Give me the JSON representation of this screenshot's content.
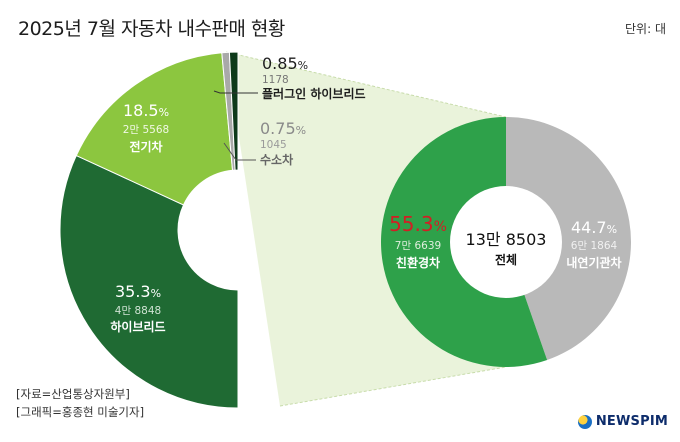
{
  "header": {
    "title": "2025년 7월 자동차 내수판매 현황",
    "unit": "단위: 대"
  },
  "footer": {
    "source": "[자료=산업통상자원부]",
    "graphic": "[그래픽=홍종현 미술기자]",
    "brand": "NEWSPIM"
  },
  "colors": {
    "hybrid": "#1f6a33",
    "electric": "#8cc63f",
    "hydrogen": "#a9a9a9",
    "plugin": "#0e3a1a",
    "eco_total": "#2ea14a",
    "ice": "#b9b9b9"
  },
  "chart_data": [
    {
      "type": "pie",
      "subtype": "donut",
      "center": {
        "value": "13만 8503",
        "label": "전체"
      },
      "slices": [
        {
          "name": "친환경차",
          "percent": 55.3,
          "pct_text": "55.3",
          "pct_unit": "%",
          "value": 76639,
          "value_text": "7만 6639",
          "color": "#2ea14a"
        },
        {
          "name": "내연기관차",
          "percent": 44.7,
          "pct_text": "44.7",
          "pct_unit": "%",
          "value": 61864,
          "value_text": "6만 1864",
          "color": "#b9b9b9"
        }
      ]
    },
    {
      "type": "pie",
      "subtype": "semi-donut breakdown of 친환경차",
      "slices": [
        {
          "name": "하이브리드",
          "percent": 35.3,
          "pct_text": "35.3",
          "pct_unit": "%",
          "value": 48848,
          "value_text": "4만 8848",
          "color": "#1f6a33"
        },
        {
          "name": "전기차",
          "percent": 18.5,
          "pct_text": "18.5",
          "pct_unit": "%",
          "value": 25568,
          "value_text": "2만 5568",
          "color": "#8cc63f"
        },
        {
          "name": "수소차",
          "percent": 0.75,
          "pct_text": "0.75",
          "pct_unit": "%",
          "value": 1045,
          "value_text": "1045",
          "color": "#a9a9a9"
        },
        {
          "name": "플러그인 하이브리드",
          "percent": 0.85,
          "pct_text": "0.85",
          "pct_unit": "%",
          "value": 1178,
          "value_text": "1178",
          "color": "#0e3a1a"
        }
      ]
    }
  ]
}
